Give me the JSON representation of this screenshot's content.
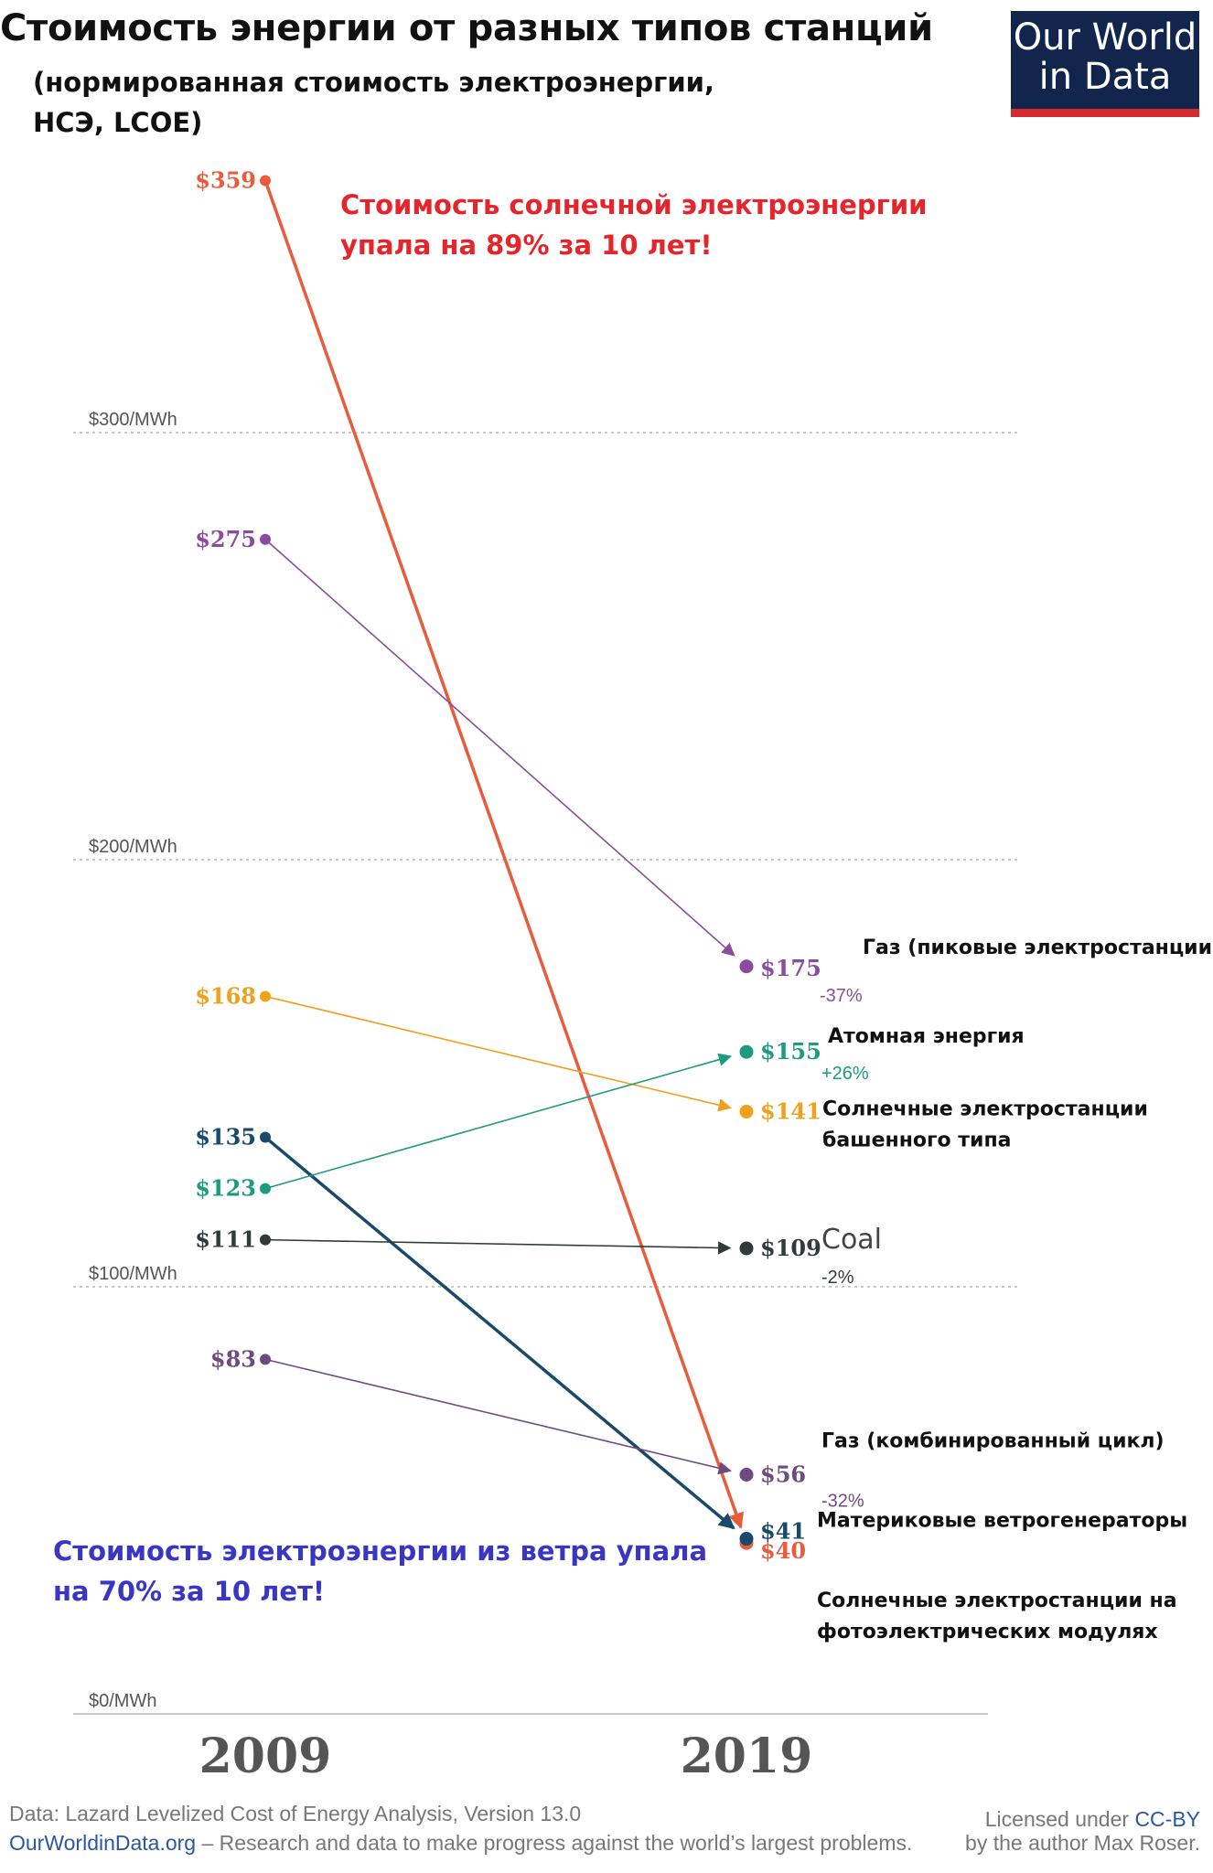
{
  "header": {
    "title": "Стоимость энергии от разных типов станций",
    "subtitle_line1": "(нормированная стоимость электроэнергии,",
    "subtitle_line2": "НСЭ, LCOE)"
  },
  "logo": {
    "line1": "Our World",
    "line2": "in Data"
  },
  "annotations": {
    "solar_line1": "Стоимость солнечной электроэнергии",
    "solar_line2": "упала на 89% за 10 лет!",
    "wind_line1": "Стоимость электроэнергии из ветра упала",
    "wind_line2": "на 70% за 10 лет!"
  },
  "footer": {
    "source": "Data: Lazard Levelized Cost of Energy Analysis, Version 13.0",
    "site": "OurWorldinData.org",
    "tagline": " – Research and data to make progress against the world’s largest problems.",
    "license_prefix": "Licensed under ",
    "license_name": "CC-BY",
    "license_line2": "by the author Max Roser."
  },
  "chart_data": {
    "type": "line",
    "x": [
      2009,
      2019
    ],
    "x_tick_labels": [
      "2009",
      "2019"
    ],
    "y_unit": "$/MWh",
    "ylim": [
      0,
      380
    ],
    "y_ticks": [
      {
        "value": 0,
        "label": "$0/MWh"
      },
      {
        "value": 100,
        "label": "$100/MWh"
      },
      {
        "value": 200,
        "label": "$200/MWh"
      },
      {
        "value": 300,
        "label": "$300/MWh"
      }
    ],
    "grid": true,
    "series": [
      {
        "values": [
          359,
          40
        ],
        "start_label": "$359",
        "end_label": "$40",
        "name_lines": [
          "Солнечные электростанции на",
          "фотоэлектрических модулях"
        ],
        "change": "",
        "color": "#e85c3d",
        "thick": true
      },
      {
        "values": [
          275,
          175
        ],
        "start_label": "$275",
        "end_label": "$175",
        "name_lines": [
          "Газ (пиковые электростанции)"
        ],
        "change": "-37%",
        "color": "#8a4c9e",
        "thick": false
      },
      {
        "values": [
          168,
          141
        ],
        "start_label": "$168",
        "end_label": "$141",
        "name_lines": [
          "Солнечные электростанции",
          "башенного типа"
        ],
        "change": "",
        "color": "#f0a01c",
        "thick": false
      },
      {
        "values": [
          135,
          41
        ],
        "start_label": "$135",
        "end_label": "$41",
        "name_lines": [
          "Материковые ветрогенераторы"
        ],
        "change": "",
        "color": "#1a4a6b",
        "thick": true
      },
      {
        "values": [
          123,
          155
        ],
        "start_label": "$123",
        "end_label": "$155",
        "name_lines": [
          "Атомная энергия"
        ],
        "change": "+26%",
        "color": "#1e9a7f",
        "thick": false
      },
      {
        "values": [
          111,
          109
        ],
        "start_label": "$111",
        "end_label": "$109",
        "name_lines": [
          "Coal"
        ],
        "change": "-2%",
        "color": "#2f3a3a",
        "thick": false
      },
      {
        "values": [
          83,
          56
        ],
        "start_label": "$83",
        "end_label": "$56",
        "name_lines": [
          "Газ (комбинированный цикл)"
        ],
        "change": "-32%",
        "color": "#6e4a80",
        "thick": false
      }
    ]
  }
}
